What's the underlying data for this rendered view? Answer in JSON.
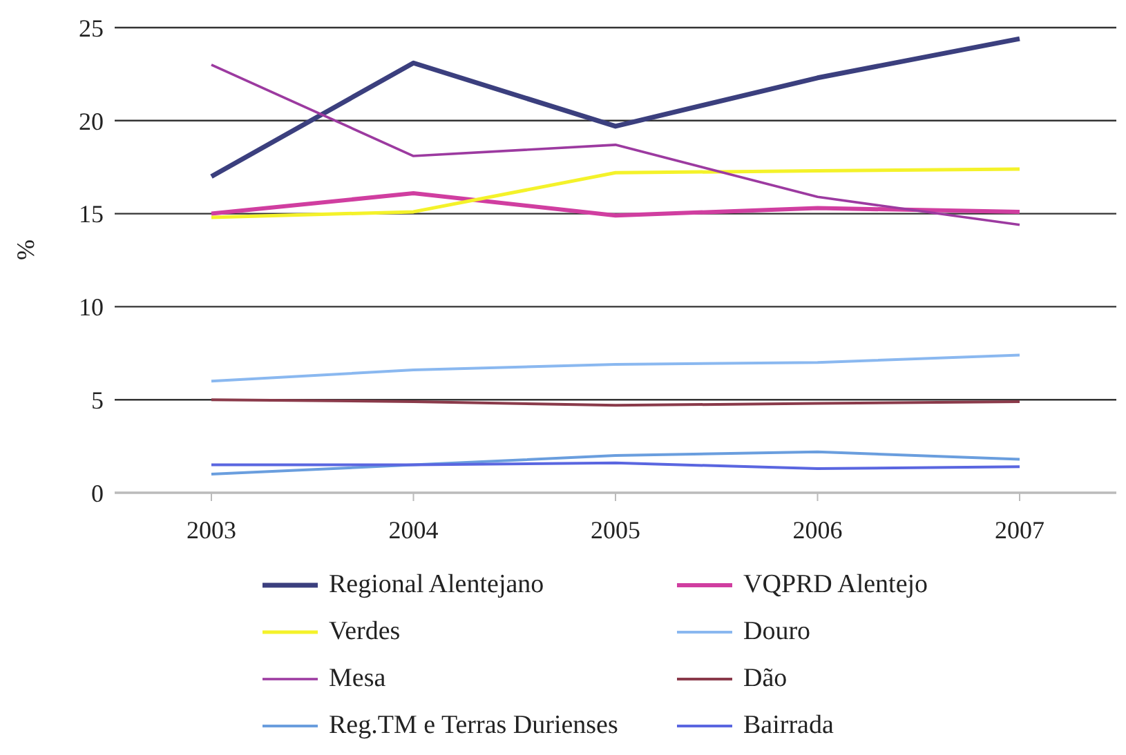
{
  "chart_data": {
    "type": "line",
    "ylabel": "%",
    "categories": [
      "2003",
      "2004",
      "2005",
      "2006",
      "2007"
    ],
    "series": [
      {
        "name": "Regional Alentejano",
        "color": "#3b3f7e",
        "values": [
          17,
          23.1,
          19.7,
          22.3,
          24.4
        ]
      },
      {
        "name": "VQPRD Alentejo",
        "color": "#d03ea0",
        "values": [
          15,
          16.1,
          14.9,
          15.3,
          15.1
        ]
      },
      {
        "name": "Verdes",
        "color": "#f4f22a",
        "values": [
          14.8,
          15.1,
          17.2,
          17.3,
          17.4
        ]
      },
      {
        "name": "Douro",
        "color": "#8ab8f0",
        "values": [
          6,
          6.6,
          6.9,
          7,
          7.4
        ]
      },
      {
        "name": "Mesa",
        "color": "#9c3aa0",
        "values": [
          23,
          18.1,
          18.7,
          15.9,
          14.4
        ]
      },
      {
        "name": "Dão",
        "color": "#8a3a4a",
        "values": [
          5,
          4.9,
          4.7,
          4.8,
          4.9
        ]
      },
      {
        "name": "Reg.TM e Terras Durienses",
        "color": "#6a9ede",
        "values": [
          1,
          1.5,
          2,
          2.2,
          1.8
        ]
      },
      {
        "name": "Bairrada",
        "color": "#5a66e0",
        "values": [
          1.5,
          1.5,
          1.6,
          1.3,
          1.4
        ]
      }
    ],
    "ylim": [
      0,
      25
    ],
    "yticks": [
      0,
      5,
      10,
      15,
      20,
      25
    ],
    "grid": "y",
    "legend": "bottom",
    "marker": "none",
    "line_style": "solid"
  }
}
